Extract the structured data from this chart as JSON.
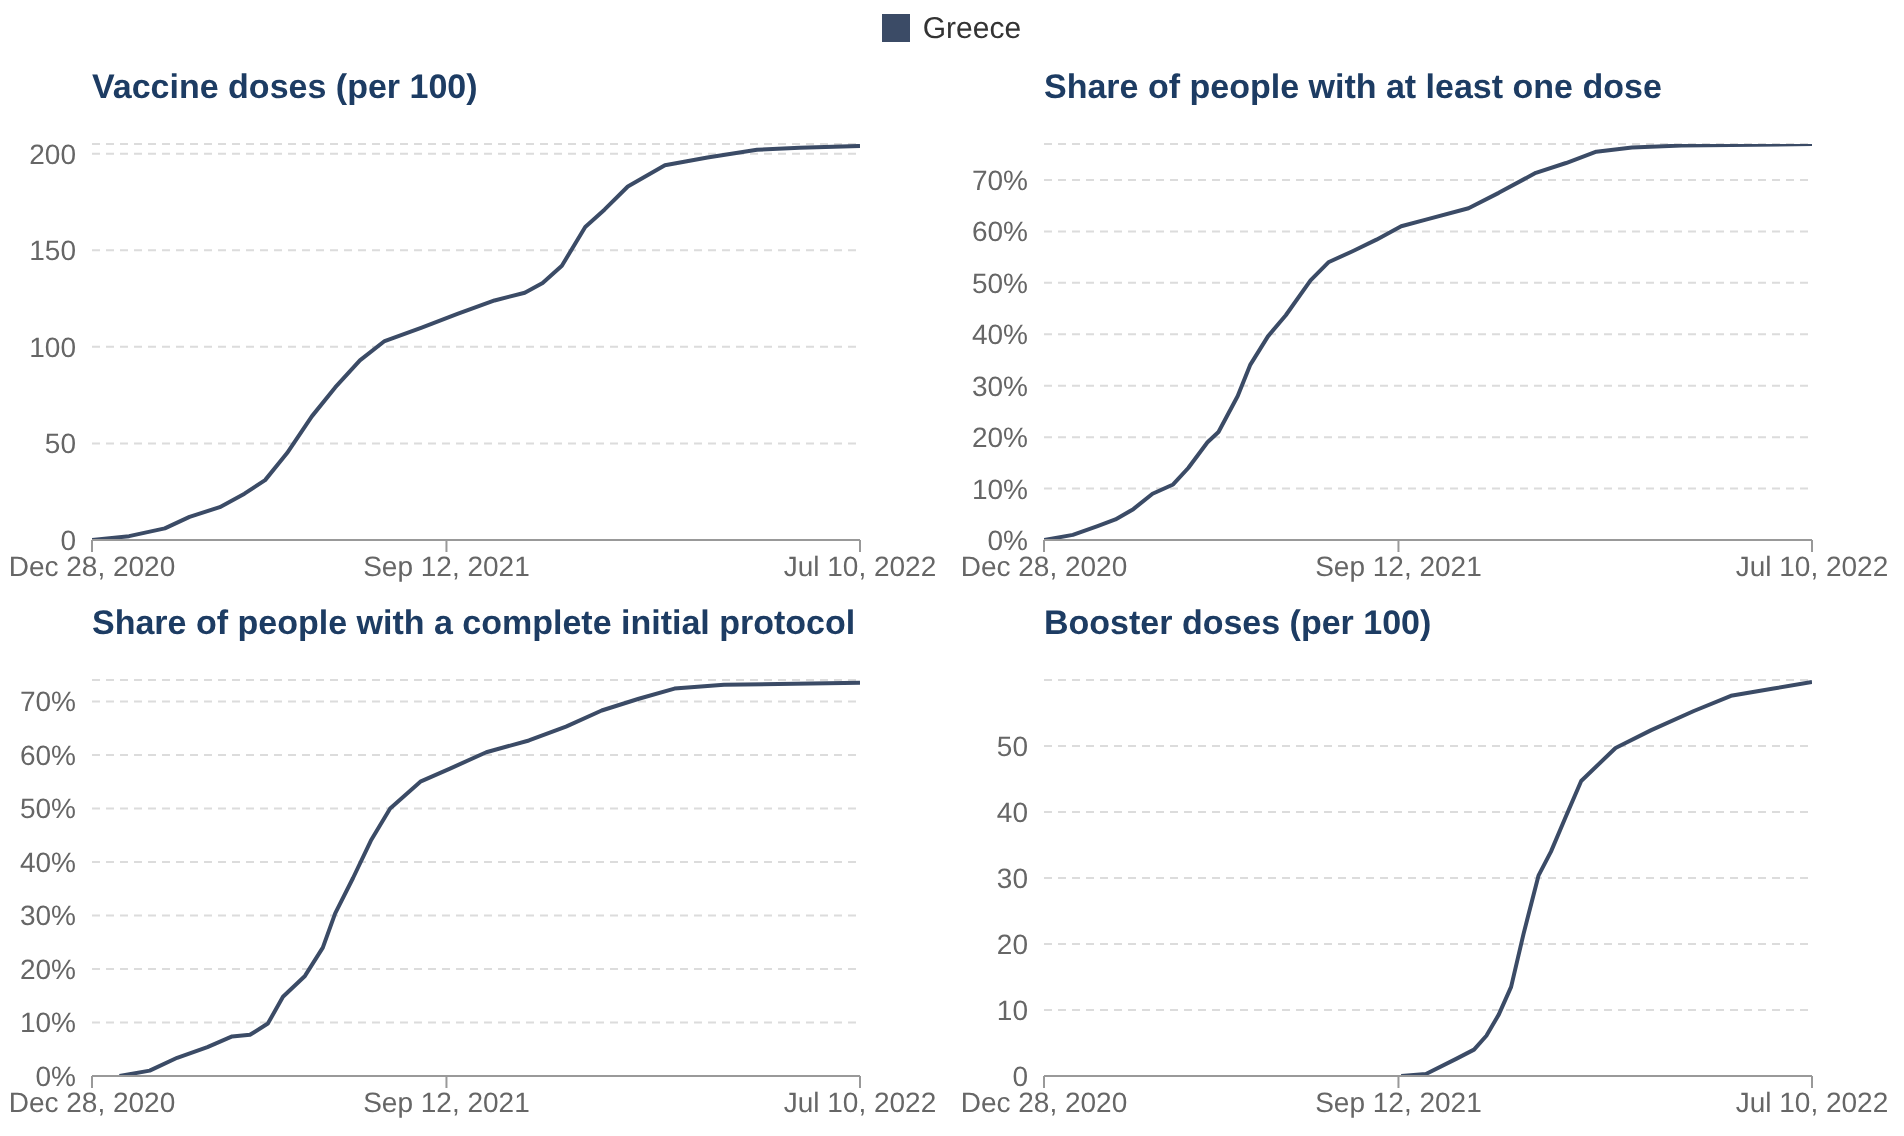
{
  "chart_data": [
    {
      "type": "line",
      "title": "Vaccine doses (per 100)",
      "legend": "top",
      "grid": "y",
      "marker": "none",
      "line_style": "solid",
      "xlim": [
        "2020-12-28",
        "2022-07-10"
      ],
      "xticks": [
        {
          "value": "2020-12-28",
          "label": "Dec 28, 2020"
        },
        {
          "value": "2021-09-12",
          "label": "Sep 12, 2021"
        },
        {
          "value": "2022-07-10",
          "label": "Jul 10, 2022"
        }
      ],
      "ylim": [
        0,
        205
      ],
      "yticks": [
        0,
        50,
        100,
        150,
        200
      ],
      "x": [
        "2020-12-28",
        "2021-01-24",
        "2021-02-19",
        "2021-03-09",
        "2021-03-31",
        "2021-04-18",
        "2021-05-03",
        "2021-05-19",
        "2021-06-06",
        "2021-06-23",
        "2021-07-11",
        "2021-07-29",
        "2021-08-25",
        "2021-09-20",
        "2021-10-17",
        "2021-11-08",
        "2021-11-21",
        "2021-12-05",
        "2021-12-22",
        "2022-01-05",
        "2022-01-22",
        "2022-02-18",
        "2022-03-21",
        "2022-04-26",
        "2022-05-27",
        "2022-07-10"
      ],
      "series": [
        {
          "name": "Greece",
          "color": "#3b4b66",
          "values": [
            0,
            2,
            6,
            12,
            17,
            24,
            31,
            45,
            64,
            79,
            93,
            103,
            110,
            117,
            124,
            128,
            133,
            142,
            162,
            171,
            183,
            194,
            198,
            202,
            203,
            204
          ]
        }
      ]
    },
    {
      "type": "line",
      "title": "Share of people with at least one dose",
      "grid": "y",
      "marker": "none",
      "line_style": "solid",
      "xlim": [
        "2020-12-28",
        "2022-07-10"
      ],
      "xticks": [
        {
          "value": "2020-12-28",
          "label": "Dec 28, 2020"
        },
        {
          "value": "2021-09-12",
          "label": "Sep 12, 2021"
        },
        {
          "value": "2022-07-10",
          "label": "Jul 10, 2022"
        }
      ],
      "ylim": [
        0,
        77
      ],
      "yticks": [
        {
          "value": 0,
          "label": "0%"
        },
        {
          "value": 10,
          "label": "10%"
        },
        {
          "value": 20,
          "label": "20%"
        },
        {
          "value": 30,
          "label": "30%"
        },
        {
          "value": 40,
          "label": "40%"
        },
        {
          "value": 50,
          "label": "50%"
        },
        {
          "value": 60,
          "label": "60%"
        },
        {
          "value": 70,
          "label": "70%"
        }
      ],
      "x": [
        "2020-12-28",
        "2021-01-18",
        "2021-02-05",
        "2021-02-18",
        "2021-03-03",
        "2021-03-17",
        "2021-04-01",
        "2021-04-12",
        "2021-04-26",
        "2021-05-04",
        "2021-05-18",
        "2021-05-27",
        "2021-06-09",
        "2021-06-22",
        "2021-07-10",
        "2021-07-23",
        "2021-08-10",
        "2021-08-27",
        "2021-09-14",
        "2021-10-02",
        "2021-11-02",
        "2021-11-24",
        "2021-12-21",
        "2022-01-12",
        "2022-02-03",
        "2022-03-01",
        "2022-04-06",
        "2022-07-10"
      ],
      "series": [
        {
          "color": "#3b4b66",
          "values": [
            0,
            1,
            2.7,
            4,
            6,
            9,
            10.8,
            14,
            19,
            21,
            28,
            34,
            39.6,
            43.7,
            50.5,
            54,
            56.2,
            58.4,
            61,
            62.3,
            64.5,
            67.5,
            71.4,
            73.3,
            75.5,
            76.3,
            76.7,
            77
          ]
        }
      ]
    },
    {
      "type": "line",
      "title": "Share of people with a complete initial protocol",
      "grid": "y",
      "marker": "none",
      "line_style": "solid",
      "xlim": [
        "2020-12-28",
        "2022-07-10"
      ],
      "xticks": [
        {
          "value": "2020-12-28",
          "label": "Dec 28, 2020"
        },
        {
          "value": "2021-09-12",
          "label": "Sep 12, 2021"
        },
        {
          "value": "2022-07-10",
          "label": "Jul 10, 2022"
        }
      ],
      "ylim": [
        0,
        74
      ],
      "yticks": [
        {
          "value": 0,
          "label": "0%"
        },
        {
          "value": 10,
          "label": "10%"
        },
        {
          "value": 20,
          "label": "20%"
        },
        {
          "value": 30,
          "label": "30%"
        },
        {
          "value": 40,
          "label": "40%"
        },
        {
          "value": 50,
          "label": "50%"
        },
        {
          "value": 60,
          "label": "60%"
        },
        {
          "value": 70,
          "label": "70%"
        }
      ],
      "x": [
        "2021-01-17",
        "2021-02-08",
        "2021-02-28",
        "2021-03-22",
        "2021-04-09",
        "2021-04-22",
        "2021-05-05",
        "2021-05-16",
        "2021-06-01",
        "2021-06-14",
        "2021-06-23",
        "2021-07-06",
        "2021-07-19",
        "2021-08-02",
        "2021-08-24",
        "2021-09-15",
        "2021-10-11",
        "2021-11-11",
        "2021-12-08",
        "2022-01-03",
        "2022-01-30",
        "2022-02-25",
        "2022-04-02",
        "2022-07-10"
      ],
      "series": [
        {
          "color": "#3b4b66",
          "values": [
            0,
            1,
            3.4,
            5.4,
            7.4,
            7.7,
            9.8,
            14.8,
            18.7,
            24,
            30.4,
            37,
            44,
            50,
            55,
            57.5,
            60.5,
            62.7,
            65.3,
            68.3,
            70.5,
            72.4,
            73.1,
            73.5
          ]
        }
      ]
    },
    {
      "type": "line",
      "title": "Booster doses (per 100)",
      "grid": "y",
      "marker": "none",
      "line_style": "solid",
      "xlim": [
        "2020-12-28",
        "2022-07-10"
      ],
      "xticks": [
        {
          "value": "2020-12-28",
          "label": "Dec 28, 2020"
        },
        {
          "value": "2021-09-12",
          "label": "Sep 12, 2021"
        },
        {
          "value": "2022-07-10",
          "label": "Jul 10, 2022"
        }
      ],
      "ylim": [
        0,
        60
      ],
      "yticks": [
        0,
        10,
        20,
        30,
        40,
        50
      ],
      "x": [
        "2021-09-14",
        "2021-10-02",
        "2021-10-24",
        "2021-11-06",
        "2021-11-15",
        "2021-11-24",
        "2021-12-03",
        "2021-12-12",
        "2021-12-23",
        "2022-01-01",
        "2022-01-12",
        "2022-01-23",
        "2022-02-17",
        "2022-03-15",
        "2022-04-15",
        "2022-05-12",
        "2022-06-12",
        "2022-07-10"
      ],
      "series": [
        {
          "color": "#3b4b66",
          "values": [
            0,
            0.3,
            2.6,
            4,
            6.1,
            9.3,
            13.5,
            21.5,
            30.4,
            34,
            39.4,
            44.7,
            49.7,
            52.4,
            55.3,
            57.6,
            58.7,
            59.7
          ]
        }
      ]
    }
  ]
}
